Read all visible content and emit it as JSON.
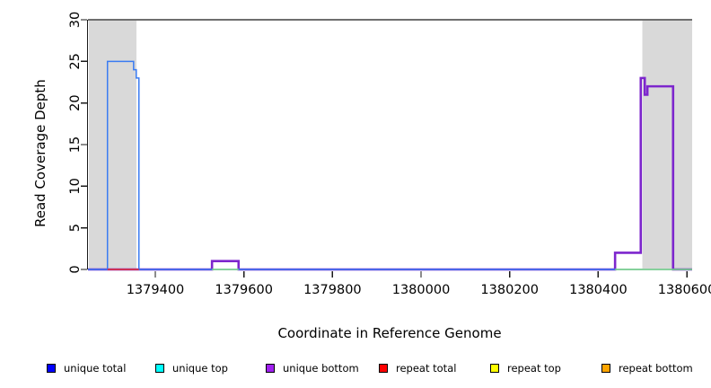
{
  "chart_data": {
    "type": "line",
    "subtype": "step-coverage",
    "title": "",
    "xlabel": "Coordinate in Reference Genome",
    "ylabel": "Read Coverage Depth",
    "xlim": [
      1379248,
      1380612
    ],
    "ylim": [
      0,
      30
    ],
    "xticks": [
      1379400,
      1379600,
      1379800,
      1380000,
      1380200,
      1380400,
      1380600
    ],
    "yticks": [
      0,
      5,
      10,
      15,
      20,
      25,
      30
    ],
    "grid": false,
    "top_rule_y": 30,
    "top_rule_color": "#6e6e6e",
    "shade_color": "#d9d9d9",
    "shaded_regions": [
      {
        "from": 1379250,
        "to": 1379357
      },
      {
        "from": 1380500,
        "to": 1380612
      }
    ],
    "series": [
      {
        "name": "unique bottom",
        "color": "#7d26cd",
        "width": 2.6,
        "steps": [
          [
            1379248,
            0
          ],
          [
            1379528,
            1
          ],
          [
            1379588,
            0
          ],
          [
            1380438,
            2
          ],
          [
            1380496,
            23
          ],
          [
            1380505,
            21
          ],
          [
            1380511,
            22
          ],
          [
            1380569,
            0
          ],
          [
            1380612,
            0
          ]
        ]
      },
      {
        "name": "unique total",
        "color": "#3a7bf2",
        "width": 1.5,
        "steps": [
          [
            1379248,
            0
          ],
          [
            1379292,
            25
          ],
          [
            1379351,
            24
          ],
          [
            1379357,
            23
          ],
          [
            1379363,
            0
          ],
          [
            1380612,
            0
          ]
        ]
      },
      {
        "name": "repeat total baseline",
        "color": "#e8352e",
        "width": 1.5,
        "steps": [
          [
            1379292,
            0
          ],
          [
            1379363,
            0
          ]
        ]
      },
      {
        "name": "green baseline left",
        "color": "#7ed87e",
        "width": 1.5,
        "steps": [
          [
            1379528,
            0
          ],
          [
            1379588,
            0
          ]
        ]
      },
      {
        "name": "green baseline right",
        "color": "#7ed87e",
        "width": 1.5,
        "steps": [
          [
            1380438,
            0
          ],
          [
            1380612,
            0
          ]
        ]
      }
    ],
    "legend": {
      "position": "bottom",
      "items": [
        {
          "label": "unique total",
          "color": "#0000ff"
        },
        {
          "label": "unique top",
          "color": "#00ffff"
        },
        {
          "label": "unique bottom",
          "color": "#a020f0"
        },
        {
          "label": "repeat total",
          "color": "#ff0000"
        },
        {
          "label": "repeat top",
          "color": "#ffff00"
        },
        {
          "label": "repeat bottom",
          "color": "#ffa500"
        }
      ]
    }
  }
}
